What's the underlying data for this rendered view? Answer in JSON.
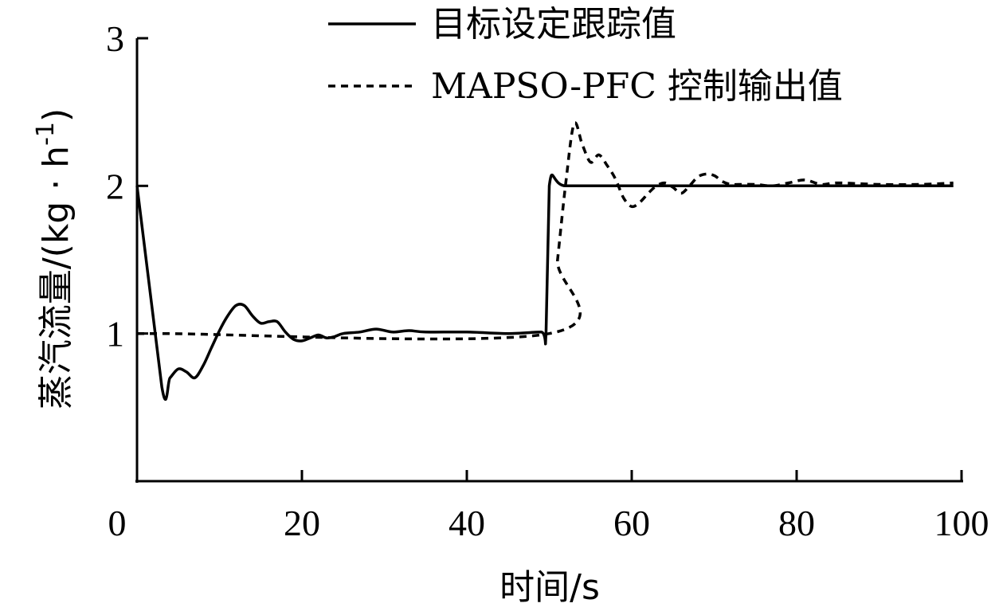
{
  "chart_data": {
    "type": "line",
    "xlabel": "时间/s",
    "ylabel": "蒸汽流量/(kg · h",
    "ylabel_sup": "-1",
    "ylabel_close": ")",
    "xlim": [
      0,
      100
    ],
    "ylim": [
      0,
      3
    ],
    "xticks": [
      0,
      20,
      40,
      60,
      80,
      100
    ],
    "yticks": [
      1,
      2,
      3
    ],
    "grid": false,
    "legend_position": "top-right",
    "series": [
      {
        "name": "目标设定跟踪值",
        "style": "solid",
        "color": "#000000",
        "x": [
          0,
          3,
          4,
          5,
          6,
          7,
          8,
          9,
          10,
          11,
          12,
          13,
          14,
          15,
          16,
          17,
          18,
          19,
          20,
          21,
          22,
          23,
          24,
          25,
          27,
          29,
          31,
          33,
          35,
          40,
          45,
          49,
          49.6,
          50,
          52,
          60,
          70,
          80,
          90,
          99
        ],
        "y": [
          2.0,
          0.64,
          0.7,
          0.76,
          0.74,
          0.7,
          0.78,
          0.9,
          1.02,
          1.12,
          1.19,
          1.19,
          1.12,
          1.07,
          1.08,
          1.08,
          1.01,
          0.96,
          0.95,
          0.97,
          0.99,
          0.97,
          0.98,
          1.0,
          1.01,
          1.03,
          1.01,
          1.02,
          1.01,
          1.01,
          1.0,
          1.01,
          1.0,
          2.0,
          2.0,
          2.0,
          2.0,
          2.0,
          2.0,
          2.0
        ]
      },
      {
        "name": "MAPSO-PFC 控制输出值",
        "style": "dashed",
        "color": "#000000",
        "x": [
          0,
          3,
          50,
          51,
          52,
          53,
          54,
          55,
          56,
          57,
          58,
          59,
          60,
          61,
          62,
          63,
          64,
          65,
          66,
          67,
          68,
          69,
          70,
          71,
          72,
          73,
          75,
          77,
          79,
          81,
          83,
          85,
          90,
          95,
          99
        ],
        "y": [
          1.0,
          1.0,
          1.0,
          1.5,
          2.02,
          2.42,
          2.28,
          2.16,
          2.21,
          2.14,
          2.05,
          1.92,
          1.86,
          1.89,
          1.95,
          2.0,
          2.02,
          1.99,
          1.95,
          2.0,
          2.06,
          2.08,
          2.07,
          2.03,
          2.01,
          2.01,
          2.01,
          2.0,
          2.02,
          2.04,
          2.01,
          2.02,
          2.01,
          2.01,
          2.02
        ]
      }
    ]
  }
}
